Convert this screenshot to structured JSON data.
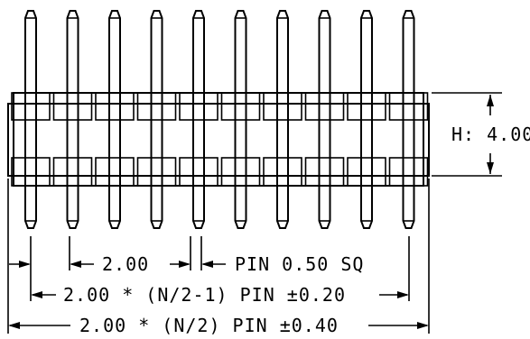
{
  "dimensions": {
    "height_label": "H: 4.00",
    "pitch_label": "2.00",
    "pin_size_label": "PIN 0.50 SQ",
    "inner_span_label": "2.00 * (N/2-1) PIN ±0.20",
    "overall_span_label": "2.00 * (N/2) PIN ±0.40"
  },
  "drawing": {
    "pin_count": 10
  }
}
